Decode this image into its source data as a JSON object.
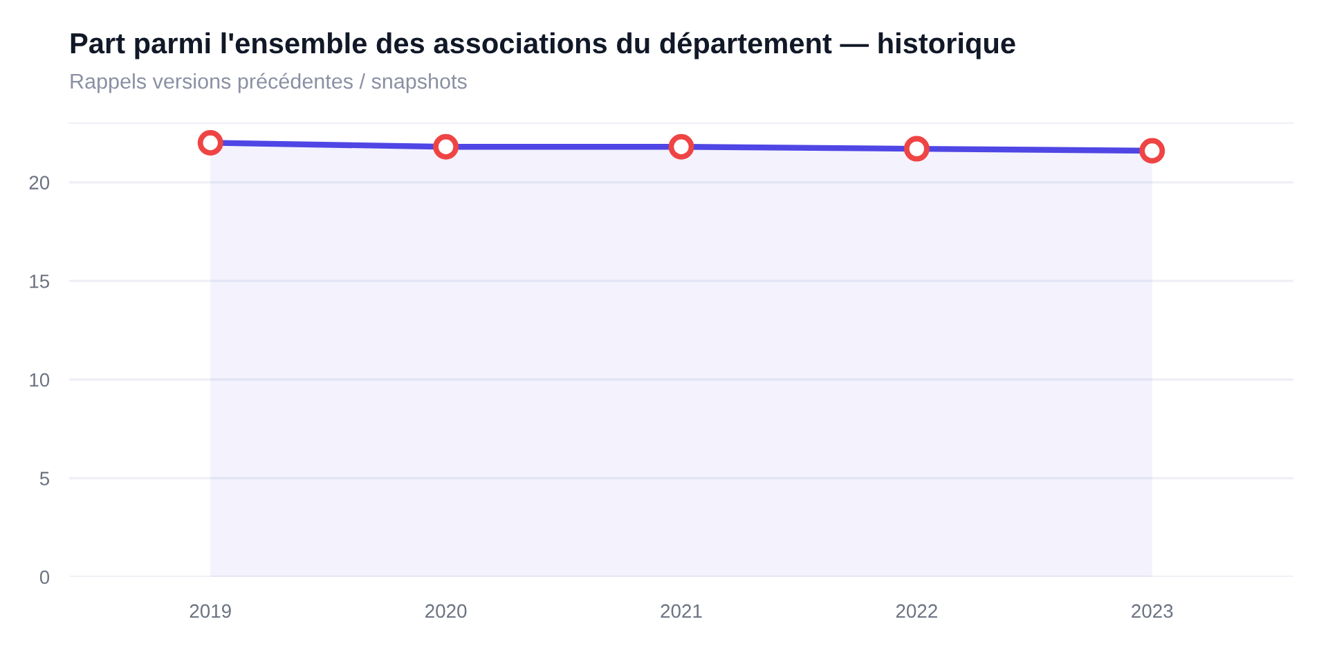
{
  "chart_data": {
    "type": "area",
    "title": "Part parmi l'ensemble des associations du département — historique",
    "subtitle": "Rappels versions précédentes / snapshots",
    "categories": [
      "2019",
      "2020",
      "2021",
      "2022",
      "2023"
    ],
    "series": [
      {
        "color": "#4f46e5",
        "colors": [
          "#ef4444",
          "#ef4444",
          "#ef4444",
          "#ef4444",
          "#ef4444"
        ],
        "values": [
          22.0,
          21.8,
          21.8,
          21.7,
          21.6
        ]
      }
    ],
    "ylim": [
      0,
      23
    ],
    "yticks": [
      0,
      5,
      10,
      15,
      20
    ],
    "grid": "y",
    "marker": "circle",
    "line_style": "solid",
    "legend": false
  }
}
